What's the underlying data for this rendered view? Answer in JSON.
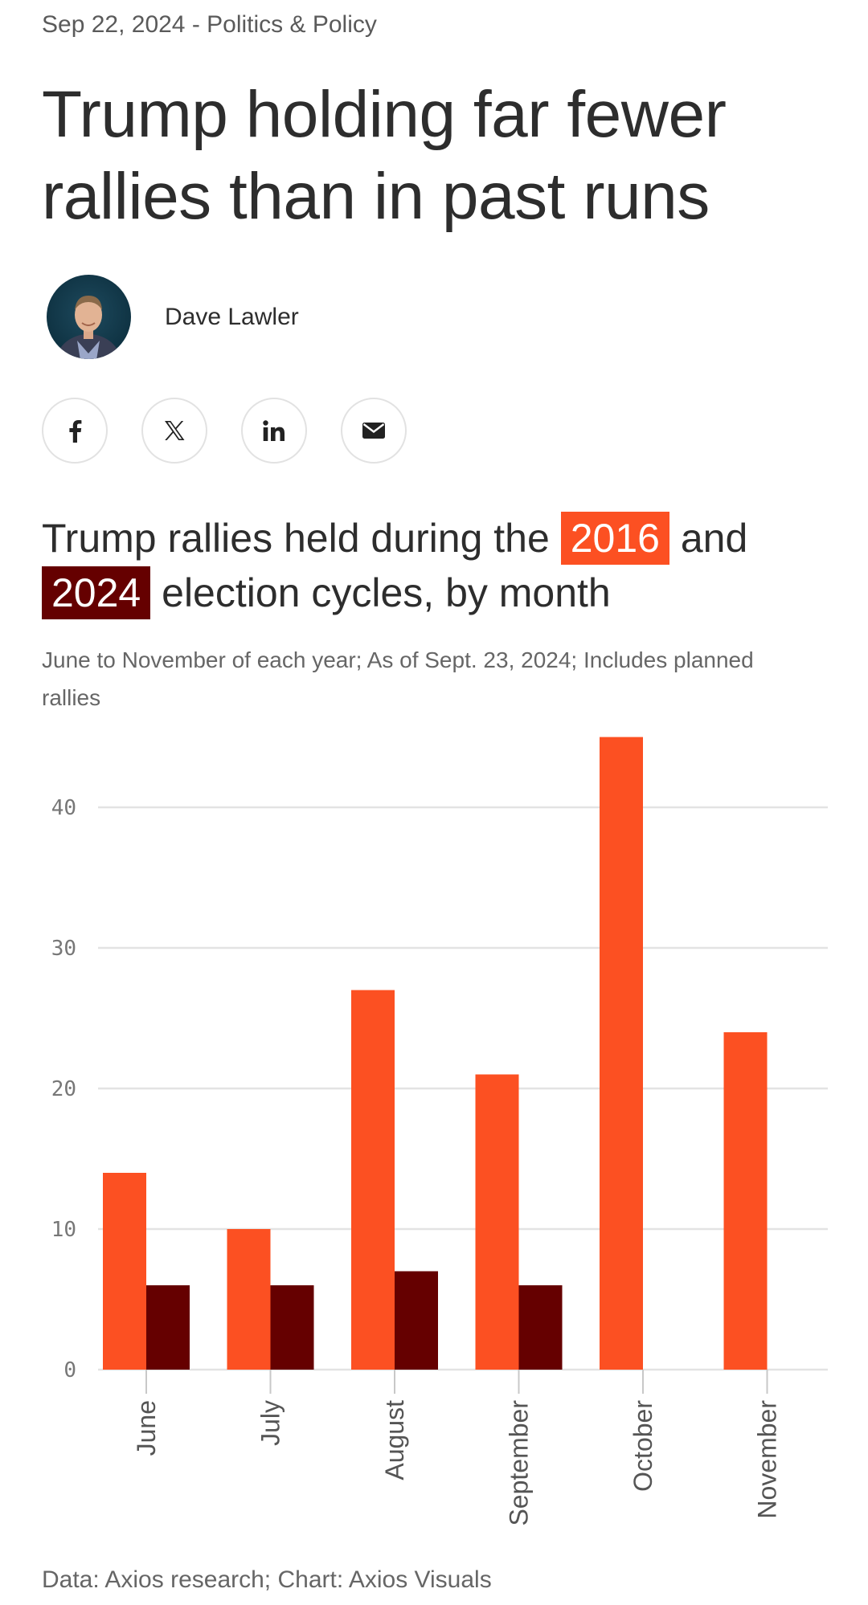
{
  "article": {
    "meta": "Sep 22, 2024 - Politics & Policy",
    "headline": "Trump holding far fewer rallies than in past runs",
    "author": "Dave Lawler"
  },
  "share": [
    {
      "name": "facebook-share-button",
      "icon": "facebook-icon"
    },
    {
      "name": "x-share-button",
      "icon": "x-icon"
    },
    {
      "name": "linkedin-share-button",
      "icon": "linkedin-icon"
    },
    {
      "name": "email-share-button",
      "icon": "email-icon"
    }
  ],
  "chart_title": {
    "part1": "Trump rallies held during the",
    "hl1": "2016",
    "part2": "and",
    "hl2": "2024",
    "part3": "election cycles, by month"
  },
  "colors": {
    "series_2016": "#fc5022",
    "series_2024": "#650000",
    "grid": "#e3e3e3"
  },
  "chart_data": {
    "type": "bar",
    "title": "Trump rallies held during the 2016 and 2024 election cycles, by month",
    "subtitle": "June to November of each year; As of Sept. 23, 2024; Includes planned rallies",
    "categories": [
      "June",
      "July",
      "August",
      "September",
      "October",
      "November"
    ],
    "series": [
      {
        "name": "2016",
        "values": [
          14,
          10,
          27,
          21,
          45,
          24
        ]
      },
      {
        "name": "2024",
        "values": [
          6,
          6,
          7,
          6,
          null,
          null
        ]
      }
    ],
    "y_ticks": [
      0,
      10,
      20,
      30,
      40
    ],
    "ylim": [
      0,
      45
    ],
    "xlabel": "",
    "ylabel": "",
    "grid": true,
    "source": "Data: Axios research; Chart: Axios Visuals"
  }
}
